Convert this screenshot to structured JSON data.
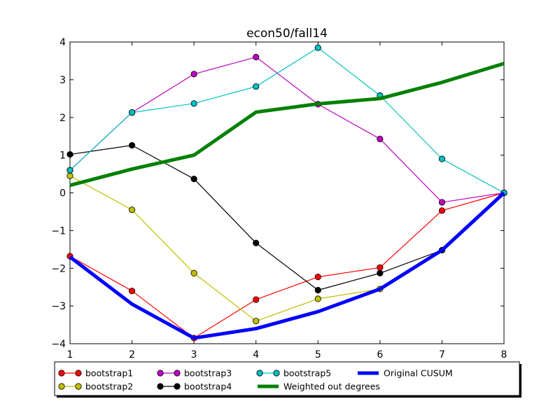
{
  "chart_data": {
    "type": "line",
    "title": "econ50/fall14",
    "xlabel": "",
    "ylabel": "",
    "xlim": [
      1,
      8
    ],
    "ylim": [
      -4,
      4
    ],
    "x_ticks": [
      "1",
      "2",
      "3",
      "4",
      "5",
      "6",
      "7",
      "8"
    ],
    "y_ticks": [
      "4",
      "3",
      "2",
      "1",
      "0",
      "−1",
      "−2",
      "−3",
      "−4"
    ],
    "grid": false,
    "legend_placement": "bottom",
    "x": [
      1,
      2,
      3,
      4,
      5,
      6,
      7,
      8
    ],
    "series": [
      {
        "name": "bootstrap1",
        "color": "#ff0000",
        "marker": true,
        "width": 1.2,
        "values": [
          -1.68,
          -2.6,
          -3.85,
          -2.83,
          -2.23,
          -1.98,
          -0.47,
          0.0
        ]
      },
      {
        "name": "bootstrap2",
        "color": "#bfbf00",
        "marker": true,
        "width": 1.2,
        "values": [
          0.45,
          -0.45,
          -2.13,
          -3.4,
          -2.81,
          -2.55,
          null,
          null
        ]
      },
      {
        "name": "bootstrap3",
        "color": "#bf00bf",
        "marker": true,
        "width": 1.2,
        "values": [
          0.6,
          2.13,
          3.15,
          3.6,
          2.35,
          1.43,
          -0.25,
          0.0
        ]
      },
      {
        "name": "bootstrap4",
        "color": "#000000",
        "marker": true,
        "width": 1.2,
        "values": [
          1.02,
          1.26,
          0.37,
          -1.33,
          -2.58,
          -2.13,
          -1.52,
          0.0
        ]
      },
      {
        "name": "bootstrap5",
        "color": "#00bfbf",
        "marker": true,
        "width": 1.2,
        "values": [
          0.6,
          2.13,
          2.37,
          2.82,
          3.85,
          2.58,
          0.9,
          0.0
        ]
      },
      {
        "name": "Weighted out degrees",
        "color": "#008000",
        "marker": false,
        "width": 5,
        "values": [
          0.2,
          0.63,
          1.0,
          2.14,
          2.36,
          2.5,
          2.93,
          3.43
        ]
      },
      {
        "name": "Original CUSUM",
        "color": "#0000ff",
        "marker": false,
        "width": 5,
        "values": [
          -1.7,
          -2.95,
          -3.85,
          -3.6,
          -3.15,
          -2.55,
          -1.52,
          0.0
        ]
      }
    ]
  }
}
